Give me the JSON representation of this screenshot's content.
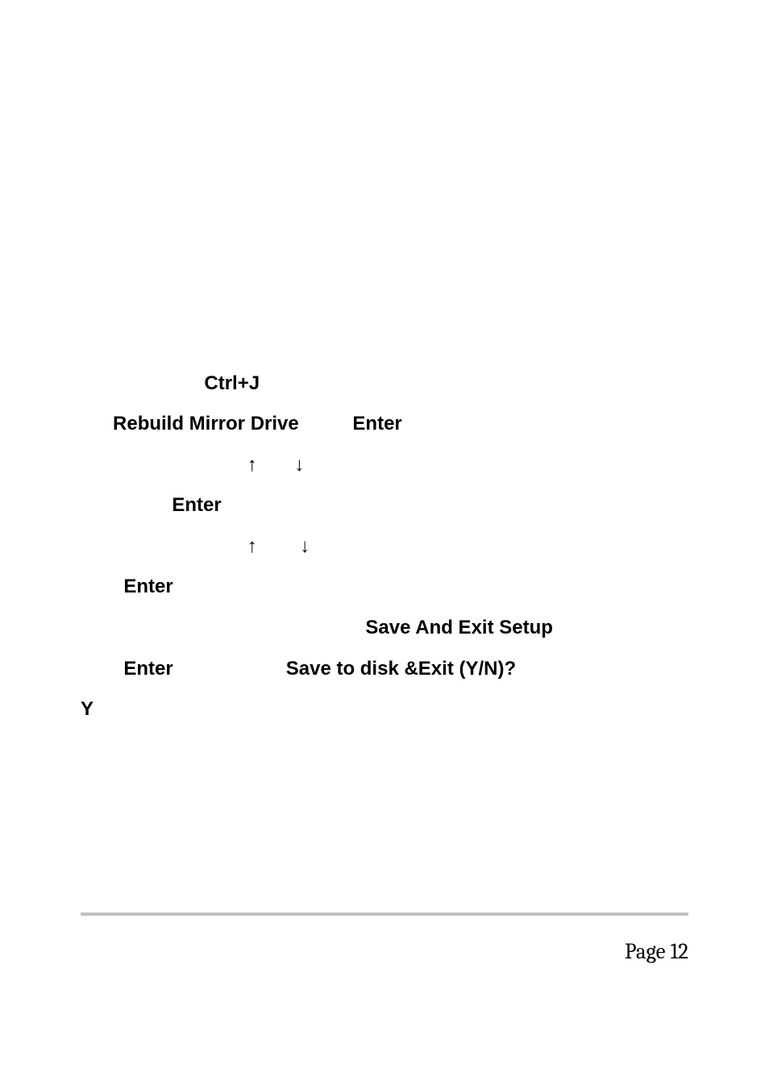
{
  "content": {
    "line1_indent": "                       ",
    "line1_bold": "Ctrl+J",
    "line2_indent": "      ",
    "line2_bold1": "Rebuild Mirror Drive",
    "line2_gap": "          ",
    "line2_bold2": "Enter",
    "line3_indent": "                               ",
    "line3_arrows": "↑       ↓",
    "line4_indent": "                 ",
    "line4_bold": "Enter",
    "line5_indent": "                               ",
    "line5_arrows": "↑        ↓",
    "line6_indent": "        ",
    "line6_bold": "Enter",
    "line7_indent": "                                                     ",
    "line7_bold": "Save  And  Exit  Setup",
    "line8_indent": "        ",
    "line8_bold1": "Enter",
    "line8_gap": "                     ",
    "line8_bold2": "Save to disk &Exit (Y/N)?",
    "line9_bold": "Y"
  },
  "footer": {
    "page_label": "Page 12"
  },
  "colors": {
    "text": "#000000",
    "background": "#ffffff",
    "divider": "#c0c0c0"
  },
  "typography": {
    "content_fontsize": 24,
    "content_weight": "bold",
    "footer_fontsize": 27,
    "footer_family": "Cambria"
  }
}
